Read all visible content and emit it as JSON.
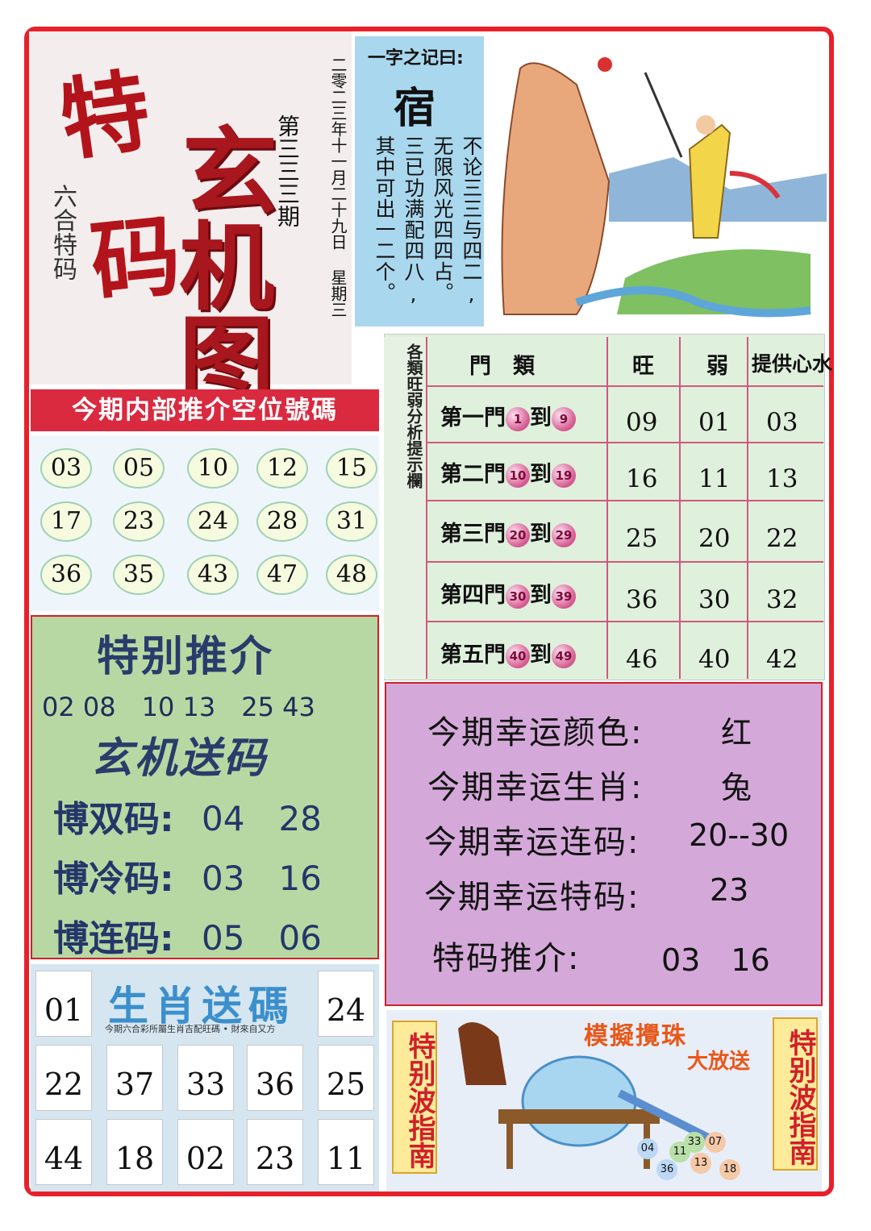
{
  "title": {
    "te": "特",
    "ma": "码",
    "xuan": "玄",
    "ji": "机",
    "tu": "图",
    "liuhe": "六合特码",
    "issue": "第三三三期",
    "date": "二零二三年十一月二十九日 星期三"
  },
  "poem": {
    "heading": "一字之记曰:",
    "char": "宿",
    "lines": [
      "不论三三与四二,",
      "无限风光四四占。",
      "三已功满配四八,",
      "其中可出一二个。"
    ]
  },
  "banner": "今期内部推介空位號碼",
  "circle_numbers": [
    "03",
    "05",
    "10",
    "12",
    "15",
    "17",
    "23",
    "24",
    "28",
    "31",
    "36",
    "35",
    "43",
    "47",
    "48"
  ],
  "door_table": {
    "side_label": "各類旺弱分析提示欄",
    "headers": [
      "門　類",
      "旺",
      "弱",
      "提供心水"
    ],
    "rows": [
      {
        "prefix": "第一門",
        "from": "1",
        "to_word": "到",
        "to": "9",
        "values": [
          "09",
          "01",
          "03"
        ]
      },
      {
        "prefix": "第二門",
        "from": "10",
        "to_word": "到",
        "to": "19",
        "values": [
          "16",
          "11",
          "13"
        ]
      },
      {
        "prefix": "第三門",
        "from": "20",
        "to_word": "到",
        "to": "29",
        "values": [
          "25",
          "20",
          "22"
        ]
      },
      {
        "prefix": "第四門",
        "from": "30",
        "to_word": "到",
        "to": "39",
        "values": [
          "36",
          "30",
          "32"
        ]
      },
      {
        "prefix": "第五門",
        "from": "40",
        "to_word": "到",
        "to": "49",
        "values": [
          "46",
          "40",
          "42"
        ]
      }
    ]
  },
  "special": {
    "heading": "特别推介",
    "numbers": "02 08　10 13　25 43",
    "heading2": "玄机送码",
    "rows": [
      {
        "label": "博双码:",
        "value": "04　28"
      },
      {
        "label": "博冷码:",
        "value": "03　16"
      },
      {
        "label": "博连码:",
        "value": "05　06"
      }
    ]
  },
  "lucky": {
    "rows": [
      {
        "label": "今期幸运颜色:",
        "value": "红"
      },
      {
        "label": "今期幸运生肖:",
        "value": "兔"
      },
      {
        "label": "今期幸运连码:",
        "value": "20--30"
      },
      {
        "label": "今期幸运特码:",
        "value": "23"
      },
      {
        "label": "特码推介:",
        "value": "03　16"
      }
    ]
  },
  "zodiac": {
    "title": "生肖送碼",
    "subtitle": "今期六合彩所屬生肖吉配旺碼 • 財來自又方",
    "numbers": [
      "01",
      "24",
      "22",
      "37",
      "33",
      "36",
      "25",
      "44",
      "18",
      "02",
      "23",
      "11"
    ]
  },
  "ad": {
    "side_text": "特别波指南",
    "title": "模擬攪珠",
    "subtitle": "大放送",
    "balls": [
      "04",
      "11",
      "33",
      "07",
      "36",
      "13",
      "18"
    ]
  },
  "colors": {
    "frame": "#e8202a",
    "banner": "#d92a40",
    "green": "#b8d8a3",
    "purple": "#d4a9d9",
    "title_red": "#a8171d"
  }
}
